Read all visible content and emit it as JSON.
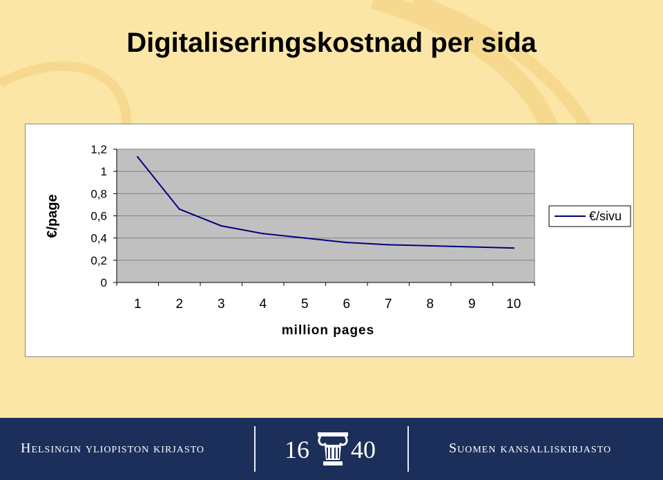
{
  "slide": {
    "title": "Digitaliseringskostnad per sida"
  },
  "chart_data": {
    "type": "line",
    "x": [
      1,
      2,
      3,
      4,
      5,
      6,
      7,
      8,
      9,
      10
    ],
    "series": [
      {
        "name": "€/sivu",
        "values": [
          1.13,
          0.66,
          0.51,
          0.44,
          0.4,
          0.36,
          0.34,
          0.33,
          0.32,
          0.31
        ],
        "color": "#000080"
      }
    ],
    "ylim": [
      0,
      1.2
    ],
    "yticks": [
      0,
      0.2,
      0.4,
      0.6,
      0.8,
      1,
      1.2
    ],
    "ytick_labels": [
      "0",
      "0,2",
      "0,4",
      "0,6",
      "0,8",
      "1",
      "1,2"
    ],
    "xtick_labels": [
      "1",
      "2",
      "3",
      "4",
      "5",
      "6",
      "7",
      "8",
      "9",
      "10"
    ],
    "xlabel": "million pages",
    "ylabel": "€/page",
    "grid": true,
    "plot_background": "#c0c0c0",
    "legend_position": "right"
  },
  "footer": {
    "left_text": "Helsingin yliopiston kirjasto",
    "right_text": "Suomen kansalliskirjasto",
    "logo_year_left": "16",
    "logo_year_right": "40",
    "background": "#1c2f5a"
  }
}
